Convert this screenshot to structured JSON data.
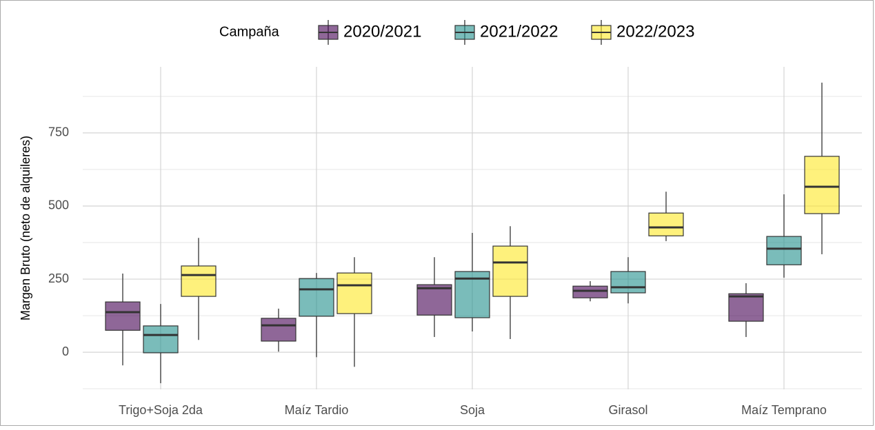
{
  "chart_data": {
    "type": "boxplot",
    "y_label": "Margen Bruto (neto de alquileres)",
    "legend_title": "Campaña",
    "categories": [
      "Trigo+Soja 2da",
      "Maíz Tardio",
      "Soja",
      "Girasol",
      "Maíz Temprano"
    ],
    "series": [
      {
        "name": "2020/2021",
        "color": "#440154",
        "values": [
          {
            "min": -45,
            "q1": 75,
            "median": 137,
            "q3": 172,
            "max": 269
          },
          {
            "min": 2,
            "q1": 38,
            "median": 92,
            "q3": 116,
            "max": 149
          },
          {
            "min": 52,
            "q1": 127,
            "median": 219,
            "q3": 231,
            "max": 325
          },
          {
            "min": 174,
            "q1": 186,
            "median": 210,
            "q3": 226,
            "max": 243
          },
          {
            "min": 52,
            "q1": 106,
            "median": 191,
            "q3": 200,
            "max": 236
          }
        ]
      },
      {
        "name": "2021/2022",
        "color": "#21908c",
        "values": [
          {
            "min": -106,
            "q1": -2,
            "median": 59,
            "q3": 90,
            "max": 165
          },
          {
            "min": -17,
            "q1": 123,
            "median": 215,
            "q3": 252,
            "max": 271
          },
          {
            "min": 71,
            "q1": 118,
            "median": 252,
            "q3": 276,
            "max": 408
          },
          {
            "min": 167,
            "q1": 203,
            "median": 222,
            "q3": 276,
            "max": 325
          },
          {
            "min": 255,
            "q1": 299,
            "median": 354,
            "q3": 396,
            "max": 540
          }
        ]
      },
      {
        "name": "2022/2023",
        "color": "#fde725",
        "values": [
          {
            "min": 42,
            "q1": 191,
            "median": 264,
            "q3": 295,
            "max": 391
          },
          {
            "min": -50,
            "q1": 132,
            "median": 229,
            "q3": 271,
            "max": 325
          },
          {
            "min": 45,
            "q1": 191,
            "median": 307,
            "q3": 363,
            "max": 431
          },
          {
            "min": 380,
            "q1": 398,
            "median": 427,
            "q3": 476,
            "max": 549
          },
          {
            "min": 335,
            "q1": 474,
            "median": 566,
            "q3": 670,
            "max": 922
          }
        ]
      }
    ],
    "ylim": [
      -127,
      976
    ],
    "yticks": [
      0,
      250,
      500,
      750
    ],
    "grid": true,
    "legend_position": "top"
  }
}
